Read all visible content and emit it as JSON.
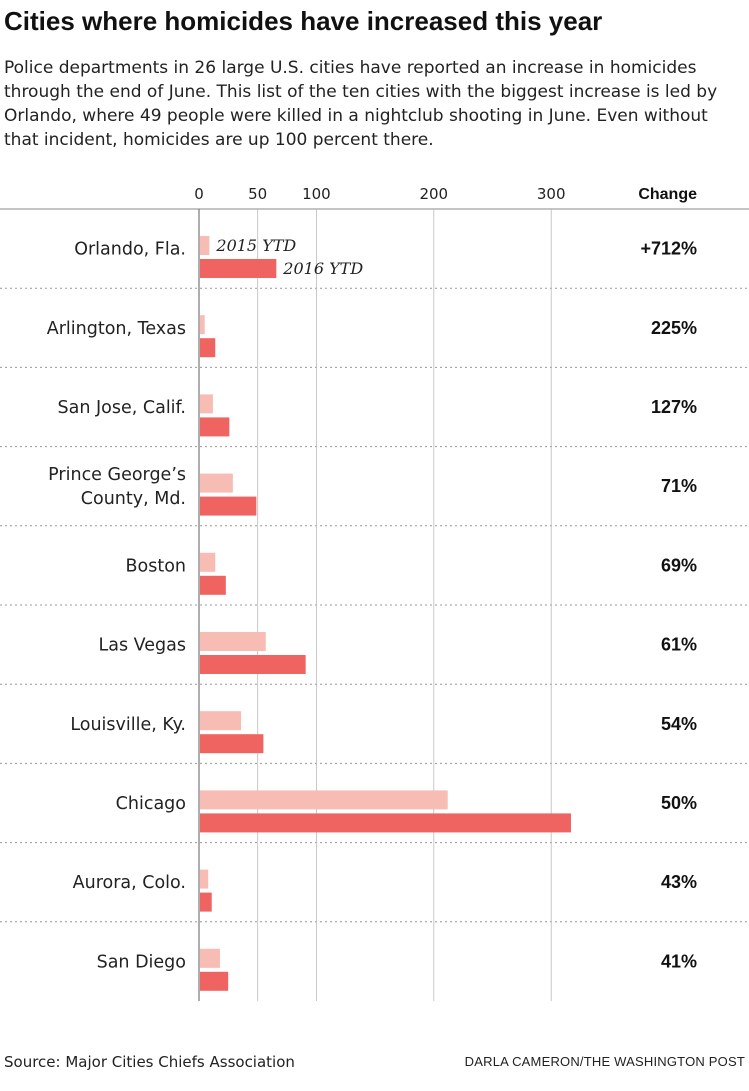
{
  "header": {
    "title": "Cities where homicides have increased this year",
    "subtitle": "Police departments in 26 large U.S. cities have reported an increase in homicides through the end of June. This list of the ten cities with the biggest increase is led by Orlando, where 49 people were killed in a nightclub shooting in June. Even without that incident, homicides are up 100 percent there."
  },
  "colors": {
    "ytd_2015": "#f7bcb3",
    "ytd_2016": "#ef6461",
    "grid": "#bbbbbb",
    "divider": "#999999"
  },
  "chart_data": {
    "type": "bar",
    "orientation": "horizontal",
    "categories": [
      [
        "Orlando, Fla."
      ],
      [
        "Arlington, Texas"
      ],
      [
        "San Jose, Calif."
      ],
      [
        "Prince George’s",
        "County, Md."
      ],
      [
        "Boston"
      ],
      [
        "Las Vegas"
      ],
      [
        "Louisville, Ky."
      ],
      [
        "Chicago"
      ],
      [
        "Aurora, Colo."
      ],
      [
        "San Diego"
      ]
    ],
    "series": [
      {
        "name": "2015 YTD",
        "values": [
          8,
          4,
          11,
          28,
          13,
          56,
          35,
          211,
          7,
          17
        ]
      },
      {
        "name": "2016 YTD",
        "values": [
          65,
          13,
          25,
          48,
          22,
          90,
          54,
          316,
          10,
          24
        ]
      }
    ],
    "change_header": "Change",
    "change": [
      "+712%",
      "225%",
      "127%",
      "71%",
      "69%",
      "61%",
      "54%",
      "50%",
      "43%",
      "41%"
    ],
    "x_ticks": [
      0,
      50,
      100,
      200,
      300
    ],
    "xlim": [
      0,
      330
    ],
    "grid": true
  },
  "footer": {
    "source": "Source: Major Cities Chiefs Association",
    "credit": "DARLA CAMERON/THE WASHINGTON POST"
  }
}
